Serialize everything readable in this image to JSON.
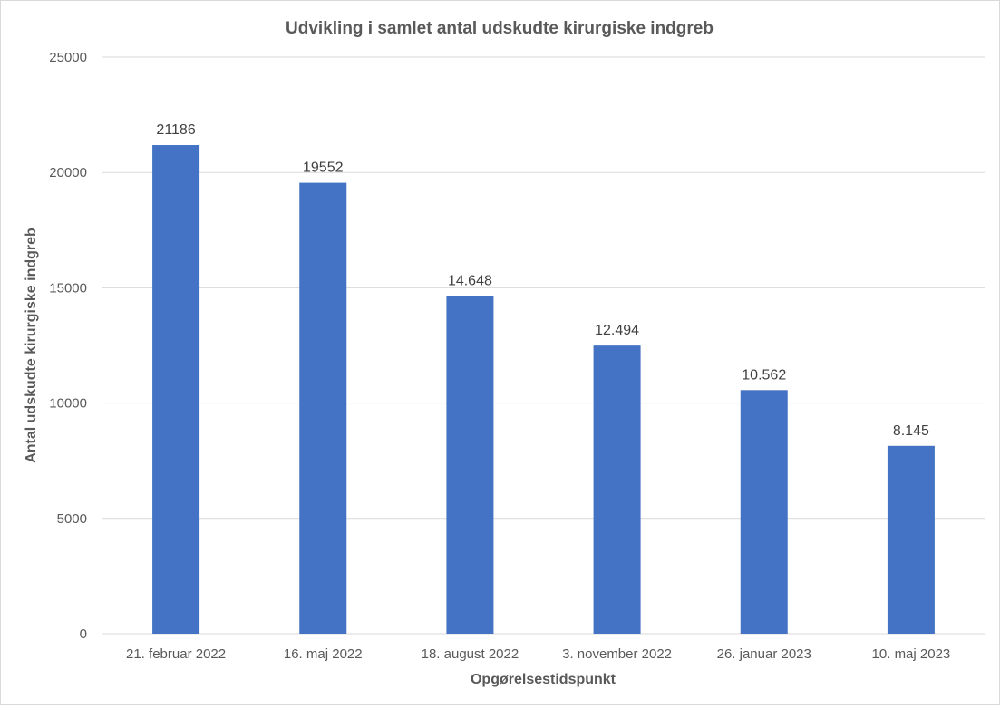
{
  "chart_data": {
    "type": "bar",
    "title": "Udvikling i samlet antal udskudte kirurgiske indgreb",
    "xlabel": "Opgørelsestidspunkt",
    "ylabel": "Antal udskudte kirurgiske indgreb",
    "categories": [
      "21. februar 2022",
      "16. maj 2022",
      "18. august 2022",
      "3. november 2022",
      "26. januar 2023",
      "10. maj 2023"
    ],
    "values": [
      21186,
      19552,
      14648,
      12494,
      10562,
      8145
    ],
    "data_labels": [
      "21186",
      "19552",
      "14.648",
      "12.494",
      "10.562",
      "8.145"
    ],
    "ylim": [
      0,
      25000
    ],
    "yticks": [
      0,
      5000,
      10000,
      15000,
      20000,
      25000
    ],
    "grid": true,
    "legend": "none",
    "bar_color": "#4472C4",
    "grid_color": "#d9d9d9"
  }
}
